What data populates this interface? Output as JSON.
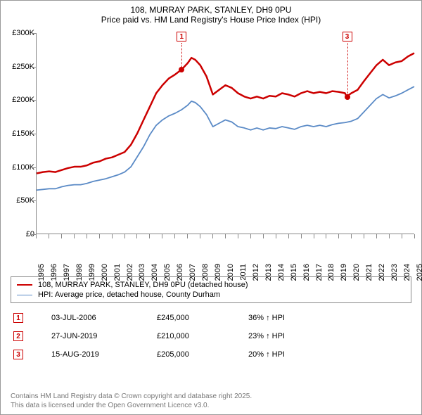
{
  "titles": {
    "line1": "108, MURRAY PARK, STANLEY, DH9 0PU",
    "line2": "Price paid vs. HM Land Registry's House Price Index (HPI)"
  },
  "chart": {
    "type": "line",
    "background_color": "#ffffff",
    "axis_color": "#888888",
    "x": {
      "min": 1995,
      "max": 2025,
      "ticks": [
        1995,
        1996,
        1997,
        1998,
        1999,
        2000,
        2001,
        2002,
        2003,
        2004,
        2005,
        2006,
        2007,
        2008,
        2009,
        2010,
        2011,
        2012,
        2013,
        2014,
        2015,
        2016,
        2017,
        2018,
        2019,
        2020,
        2021,
        2022,
        2023,
        2024,
        2025
      ],
      "tick_fontsize": 11
    },
    "y": {
      "min": 0,
      "max": 300000,
      "ticks": [
        0,
        50000,
        100000,
        150000,
        200000,
        250000,
        300000
      ],
      "tick_labels": [
        "£0",
        "£50K",
        "£100K",
        "£150K",
        "£200K",
        "£250K",
        "£300K"
      ],
      "tick_fontsize": 11
    },
    "series": [
      {
        "name": "price_paid",
        "label": "108, MURRAY PARK, STANLEY, DH9 0PU (detached house)",
        "color": "#cc0000",
        "line_width": 2.5,
        "data": [
          [
            1995.0,
            90000
          ],
          [
            1995.5,
            92000
          ],
          [
            1996.0,
            93000
          ],
          [
            1996.5,
            92000
          ],
          [
            1997.0,
            95000
          ],
          [
            1997.5,
            98000
          ],
          [
            1998.0,
            100000
          ],
          [
            1998.5,
            100000
          ],
          [
            1999.0,
            102000
          ],
          [
            1999.5,
            106000
          ],
          [
            2000.0,
            108000
          ],
          [
            2000.5,
            112000
          ],
          [
            2001.0,
            114000
          ],
          [
            2001.5,
            118000
          ],
          [
            2002.0,
            122000
          ],
          [
            2002.5,
            133000
          ],
          [
            2003.0,
            150000
          ],
          [
            2003.5,
            170000
          ],
          [
            2004.0,
            190000
          ],
          [
            2004.5,
            210000
          ],
          [
            2005.0,
            222000
          ],
          [
            2005.5,
            232000
          ],
          [
            2006.0,
            238000
          ],
          [
            2006.5,
            245000
          ],
          [
            2007.0,
            255000
          ],
          [
            2007.3,
            263000
          ],
          [
            2007.6,
            260000
          ],
          [
            2008.0,
            252000
          ],
          [
            2008.5,
            235000
          ],
          [
            2009.0,
            208000
          ],
          [
            2009.5,
            215000
          ],
          [
            2010.0,
            222000
          ],
          [
            2010.5,
            218000
          ],
          [
            2011.0,
            210000
          ],
          [
            2011.5,
            205000
          ],
          [
            2012.0,
            202000
          ],
          [
            2012.5,
            205000
          ],
          [
            2013.0,
            202000
          ],
          [
            2013.5,
            206000
          ],
          [
            2014.0,
            205000
          ],
          [
            2014.5,
            210000
          ],
          [
            2015.0,
            208000
          ],
          [
            2015.5,
            205000
          ],
          [
            2016.0,
            210000
          ],
          [
            2016.5,
            213000
          ],
          [
            2017.0,
            210000
          ],
          [
            2017.5,
            212000
          ],
          [
            2018.0,
            210000
          ],
          [
            2018.5,
            213000
          ],
          [
            2019.0,
            212000
          ],
          [
            2019.5,
            210000
          ],
          [
            2019.62,
            205000
          ],
          [
            2020.0,
            210000
          ],
          [
            2020.5,
            215000
          ],
          [
            2021.0,
            228000
          ],
          [
            2021.5,
            240000
          ],
          [
            2022.0,
            252000
          ],
          [
            2022.5,
            260000
          ],
          [
            2023.0,
            252000
          ],
          [
            2023.5,
            256000
          ],
          [
            2024.0,
            258000
          ],
          [
            2024.5,
            265000
          ],
          [
            2025.0,
            270000
          ]
        ]
      },
      {
        "name": "hpi",
        "label": "HPI: Average price, detached house, County Durham",
        "color": "#5a8ac6",
        "line_width": 1.8,
        "data": [
          [
            1995.0,
            65000
          ],
          [
            1995.5,
            66000
          ],
          [
            1996.0,
            67000
          ],
          [
            1996.5,
            67000
          ],
          [
            1997.0,
            70000
          ],
          [
            1997.5,
            72000
          ],
          [
            1998.0,
            73000
          ],
          [
            1998.5,
            73000
          ],
          [
            1999.0,
            75000
          ],
          [
            1999.5,
            78000
          ],
          [
            2000.0,
            80000
          ],
          [
            2000.5,
            82000
          ],
          [
            2001.0,
            85000
          ],
          [
            2001.5,
            88000
          ],
          [
            2002.0,
            92000
          ],
          [
            2002.5,
            100000
          ],
          [
            2003.0,
            115000
          ],
          [
            2003.5,
            130000
          ],
          [
            2004.0,
            148000
          ],
          [
            2004.5,
            162000
          ],
          [
            2005.0,
            170000
          ],
          [
            2005.5,
            176000
          ],
          [
            2006.0,
            180000
          ],
          [
            2006.5,
            185000
          ],
          [
            2007.0,
            192000
          ],
          [
            2007.3,
            198000
          ],
          [
            2007.6,
            196000
          ],
          [
            2008.0,
            190000
          ],
          [
            2008.5,
            178000
          ],
          [
            2009.0,
            160000
          ],
          [
            2009.5,
            165000
          ],
          [
            2010.0,
            170000
          ],
          [
            2010.5,
            167000
          ],
          [
            2011.0,
            160000
          ],
          [
            2011.5,
            158000
          ],
          [
            2012.0,
            155000
          ],
          [
            2012.5,
            158000
          ],
          [
            2013.0,
            155000
          ],
          [
            2013.5,
            158000
          ],
          [
            2014.0,
            157000
          ],
          [
            2014.5,
            160000
          ],
          [
            2015.0,
            158000
          ],
          [
            2015.5,
            156000
          ],
          [
            2016.0,
            160000
          ],
          [
            2016.5,
            162000
          ],
          [
            2017.0,
            160000
          ],
          [
            2017.5,
            162000
          ],
          [
            2018.0,
            160000
          ],
          [
            2018.5,
            163000
          ],
          [
            2019.0,
            165000
          ],
          [
            2019.5,
            166000
          ],
          [
            2020.0,
            168000
          ],
          [
            2020.5,
            172000
          ],
          [
            2021.0,
            182000
          ],
          [
            2021.5,
            192000
          ],
          [
            2022.0,
            202000
          ],
          [
            2022.5,
            208000
          ],
          [
            2023.0,
            203000
          ],
          [
            2023.5,
            206000
          ],
          [
            2024.0,
            210000
          ],
          [
            2024.5,
            215000
          ],
          [
            2025.0,
            220000
          ]
        ]
      }
    ],
    "markers": [
      {
        "id": "1",
        "x": 2006.5,
        "y": 245000
      },
      {
        "id": "3",
        "x": 2019.62,
        "y": 205000
      }
    ]
  },
  "legend": {
    "items": [
      {
        "color": "#cc0000",
        "width": 2.5,
        "label": "108, MURRAY PARK, STANLEY, DH9 0PU (detached house)"
      },
      {
        "color": "#5a8ac6",
        "width": 1.8,
        "label": "HPI: Average price, detached house, County Durham"
      }
    ]
  },
  "transactions": [
    {
      "id": "1",
      "date": "03-JUL-2006",
      "price": "£245,000",
      "pct": "36% ↑ HPI"
    },
    {
      "id": "2",
      "date": "27-JUN-2019",
      "price": "£210,000",
      "pct": "23% ↑ HPI"
    },
    {
      "id": "3",
      "date": "15-AUG-2019",
      "price": "£205,000",
      "pct": "20% ↑ HPI"
    }
  ],
  "footer": {
    "line1": "Contains HM Land Registry data © Crown copyright and database right 2025.",
    "line2": "This data is licensed under the Open Government Licence v3.0."
  }
}
